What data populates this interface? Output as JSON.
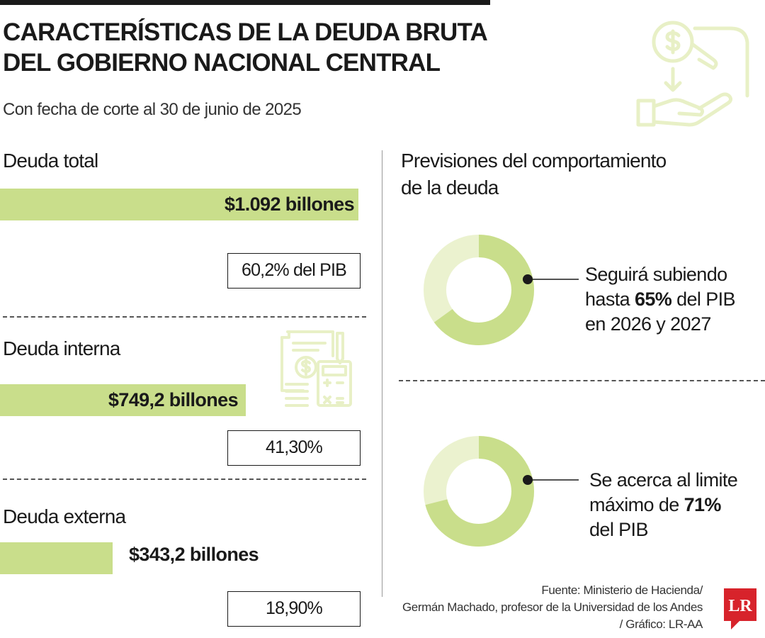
{
  "title_line1": "CARACTERÍSTICAS DE LA DEUDA BRUTA",
  "title_line2": "DEL GOBIERNO NACIONAL CENTRAL",
  "subtitle": "Con fecha de corte al 30 de junio de 2025",
  "chart_data": [
    {
      "type": "bar",
      "categories": [
        "Deuda total",
        "Deuda interna",
        "Deuda externa"
      ],
      "values": [
        1092,
        749.2,
        343.2
      ],
      "value_labels": [
        "$1.092 billones",
        "$749,2 billones",
        "$343,2 billones"
      ],
      "pct_labels": [
        "60,2% del PIB",
        "41,30%",
        "18,90%"
      ],
      "bar_color": "#c9de8b"
    },
    {
      "type": "pie",
      "title_line1": "Previsiones del comportamiento",
      "title_line2": "de la deuda",
      "series": [
        {
          "value": 65,
          "text": [
            "Seguirá subiendo",
            "hasta ",
            "65%",
            " del PIB",
            "en 2026 y 2027"
          ]
        },
        {
          "value": 71,
          "text": [
            "Se acerca al limite",
            "máximo de ",
            "71%",
            "",
            "del PIB"
          ]
        }
      ],
      "filled_color": "#c9de8b",
      "remainder_color": "#ebf2cf"
    }
  ],
  "source_line1": "Fuente: Ministerio de Hacienda/",
  "source_line2": "Germán Machado, profesor de la Universidad de los Andes",
  "source_line3": "/ Gráfico: LR-AA",
  "logo_text": "LR",
  "colors": {
    "accent_red": "#d7232b",
    "icon_stroke": "#e8f0c6",
    "text": "#1a1a1a"
  },
  "icons": [
    "coin-hand-icon",
    "documents-calculator-icon"
  ]
}
